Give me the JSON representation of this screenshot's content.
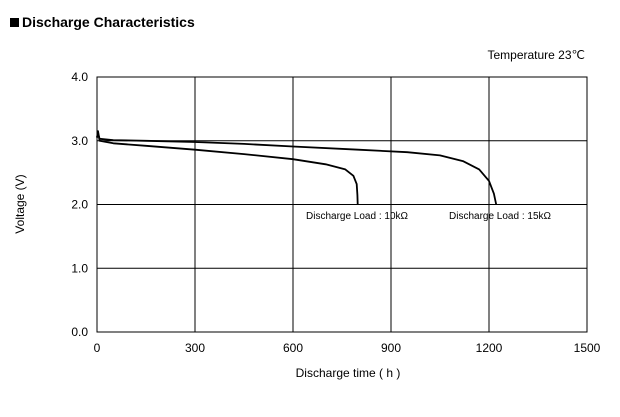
{
  "heading": "Discharge Characteristics",
  "temperature_label": "Temperature 23℃",
  "chart_data": {
    "type": "line",
    "title": "Discharge Characteristics",
    "xlabel": "Discharge time ( h )",
    "ylabel": "Voltage (V)",
    "xlim": [
      0,
      1500
    ],
    "ylim": [
      0,
      4
    ],
    "x_ticks": [
      "0",
      "300",
      "600",
      "900",
      "1200",
      "1500"
    ],
    "y_ticks": [
      "0.0",
      "1.0",
      "2.0",
      "3.0",
      "4.0"
    ],
    "grid": true,
    "line_color": "#000000",
    "series": [
      {
        "name": "Discharge Load : 10kΩ",
        "points": [
          [
            0,
            3.05
          ],
          [
            3,
            3.15
          ],
          [
            8,
            3.0
          ],
          [
            50,
            2.96
          ],
          [
            150,
            2.92
          ],
          [
            300,
            2.86
          ],
          [
            450,
            2.79
          ],
          [
            600,
            2.71
          ],
          [
            700,
            2.63
          ],
          [
            760,
            2.55
          ],
          [
            785,
            2.45
          ],
          [
            795,
            2.32
          ],
          [
            797,
            2.15
          ],
          [
            798,
            2.0
          ]
        ]
      },
      {
        "name": "Discharge Load : 15kΩ",
        "points": [
          [
            0,
            3.05
          ],
          [
            3,
            3.12
          ],
          [
            8,
            3.03
          ],
          [
            50,
            3.01
          ],
          [
            150,
            3.0
          ],
          [
            300,
            2.98
          ],
          [
            450,
            2.95
          ],
          [
            600,
            2.91
          ],
          [
            800,
            2.86
          ],
          [
            950,
            2.82
          ],
          [
            1050,
            2.77
          ],
          [
            1120,
            2.68
          ],
          [
            1170,
            2.55
          ],
          [
            1200,
            2.37
          ],
          [
            1215,
            2.17
          ],
          [
            1222,
            2.0
          ]
        ]
      }
    ]
  }
}
